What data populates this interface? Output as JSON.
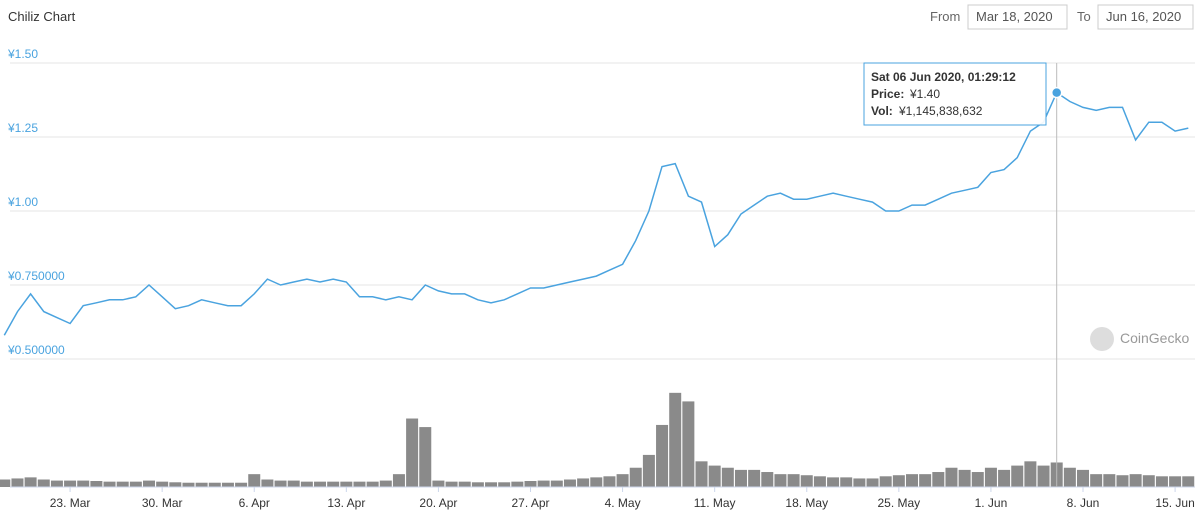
{
  "header": {
    "title": "Chiliz Chart",
    "from_label": "From",
    "from_date": "Mar 18, 2020",
    "to_label": "To",
    "to_date": "Jun 16, 2020"
  },
  "watermark": "CoinGecko",
  "tooltip": {
    "date": "Sat 06 Jun 2020, 01:29:12",
    "price_label": "Price:",
    "price": "¥1.40",
    "vol_label": "Vol:",
    "vol": "¥1,145,838,632"
  },
  "chart_data": {
    "type": "line",
    "color": "#4aa3df",
    "categories": [
      null,
      null,
      null,
      null,
      null,
      "23. Mar",
      null,
      null,
      null,
      null,
      null,
      null,
      "30. Mar",
      null,
      null,
      null,
      null,
      null,
      null,
      "6. Apr",
      null,
      null,
      null,
      null,
      null,
      null,
      "13. Apr",
      null,
      null,
      null,
      null,
      null,
      null,
      "20. Apr",
      null,
      null,
      null,
      null,
      null,
      null,
      "27. Apr",
      null,
      null,
      null,
      null,
      null,
      null,
      "4. May",
      null,
      null,
      null,
      null,
      null,
      null,
      "11. May",
      null,
      null,
      null,
      null,
      null,
      null,
      "18. May",
      null,
      null,
      null,
      null,
      null,
      null,
      "25. May",
      null,
      null,
      null,
      null,
      null,
      null,
      "1. Jun",
      null,
      null,
      null,
      null,
      null,
      null,
      "8. Jun",
      null,
      null,
      null,
      null,
      null,
      null,
      "15. Jun",
      null
    ],
    "values": [
      0.58,
      0.66,
      0.72,
      0.66,
      0.64,
      0.62,
      0.68,
      0.69,
      0.7,
      0.7,
      0.71,
      0.75,
      0.71,
      0.67,
      0.68,
      0.7,
      0.69,
      0.68,
      0.68,
      0.72,
      0.77,
      0.75,
      0.76,
      0.77,
      0.76,
      0.77,
      0.76,
      0.71,
      0.71,
      0.7,
      0.71,
      0.7,
      0.75,
      0.73,
      0.72,
      0.72,
      0.7,
      0.69,
      0.7,
      0.72,
      0.74,
      0.74,
      0.75,
      0.76,
      0.77,
      0.78,
      0.8,
      0.82,
      0.9,
      1.0,
      1.15,
      1.16,
      1.05,
      1.03,
      0.88,
      0.92,
      0.99,
      1.02,
      1.05,
      1.06,
      1.04,
      1.04,
      1.05,
      1.06,
      1.05,
      1.04,
      1.03,
      1.0,
      1.0,
      1.02,
      1.02,
      1.04,
      1.06,
      1.07,
      1.08,
      1.13,
      1.14,
      1.18,
      1.27,
      1.3,
      1.4,
      1.37,
      1.35,
      1.34,
      1.35,
      1.35,
      1.24,
      1.3,
      1.3,
      1.27,
      1.28
    ],
    "ylim": [
      0.5,
      1.5
    ],
    "yticks": [
      {
        "value": 0.5,
        "label": "¥0.500000"
      },
      {
        "value": 0.75,
        "label": "¥0.750000"
      },
      {
        "value": 1.0,
        "label": "¥1.00"
      },
      {
        "value": 1.25,
        "label": "¥1.25"
      },
      {
        "value": 1.5,
        "label": "¥1.50"
      }
    ],
    "grid": true,
    "volume": {
      "color": "#8a8a8a",
      "ylim": [
        0,
        5000000000
      ],
      "values": [
        350000000,
        400000000,
        450000000,
        350000000,
        300000000,
        300000000,
        300000000,
        280000000,
        250000000,
        250000000,
        250000000,
        300000000,
        250000000,
        220000000,
        200000000,
        200000000,
        200000000,
        200000000,
        200000000,
        600000000,
        350000000,
        300000000,
        300000000,
        250000000,
        250000000,
        250000000,
        250000000,
        250000000,
        250000000,
        300000000,
        600000000,
        3200000000,
        2800000000,
        300000000,
        250000000,
        250000000,
        220000000,
        220000000,
        220000000,
        250000000,
        280000000,
        300000000,
        300000000,
        350000000,
        400000000,
        450000000,
        500000000,
        600000000,
        900000000,
        1500000000,
        2900000000,
        4400000000,
        4000000000,
        1200000000,
        1000000000,
        900000000,
        800000000,
        800000000,
        700000000,
        600000000,
        600000000,
        550000000,
        500000000,
        450000000,
        450000000,
        400000000,
        400000000,
        500000000,
        550000000,
        600000000,
        600000000,
        700000000,
        900000000,
        800000000,
        700000000,
        900000000,
        800000000,
        1000000000,
        1200000000,
        1000000000,
        1145838632,
        900000000,
        800000000,
        600000000,
        600000000,
        550000000,
        600000000,
        550000000,
        500000000,
        500000000,
        500000000
      ]
    }
  }
}
